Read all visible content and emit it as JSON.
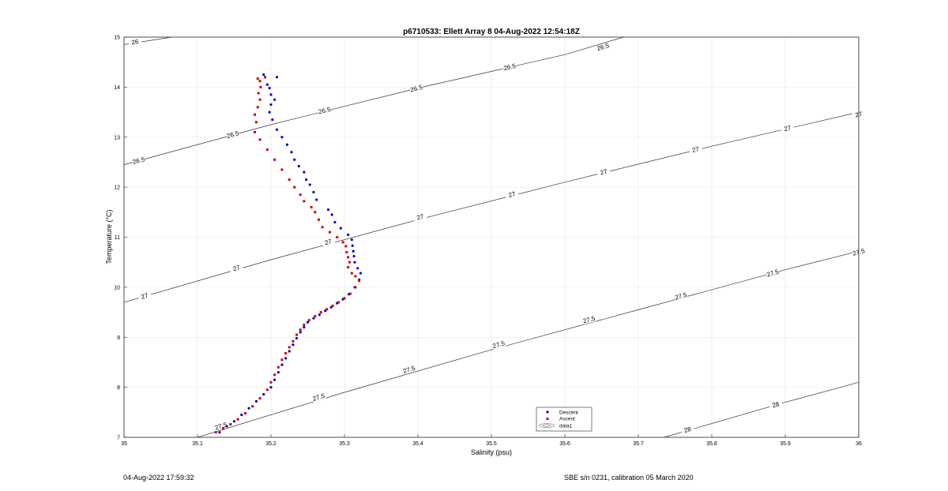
{
  "chart_data": {
    "type": "scatter",
    "title": "p6710533: Ellett Array 8 04-Aug-2022 12:54:18Z",
    "xlabel": "Salinity (psu)",
    "ylabel": "Temperature (°C)",
    "xlim": [
      35,
      36
    ],
    "ylim": [
      7,
      15
    ],
    "xticks": [
      "35",
      "35.1",
      "35.2",
      "35.3",
      "35.4",
      "35.5",
      "35.6",
      "35.7",
      "35.8",
      "35.9",
      "36"
    ],
    "yticks": [
      "7",
      "8",
      "9",
      "10",
      "11",
      "12",
      "13",
      "14",
      "15"
    ],
    "grid": true,
    "legend_position": "bottom-center",
    "legend": [
      "Descent",
      "Ascent",
      "data1"
    ],
    "series": [
      {
        "name": "Descent",
        "color": "#0000cc",
        "marker": "dot",
        "points": [
          [
            35.13,
            7.1
          ],
          [
            35.14,
            7.22
          ],
          [
            35.15,
            7.32
          ],
          [
            35.16,
            7.45
          ],
          [
            35.17,
            7.58
          ],
          [
            35.18,
            7.72
          ],
          [
            35.19,
            7.86
          ],
          [
            35.2,
            8.0
          ],
          [
            35.205,
            8.15
          ],
          [
            35.21,
            8.3
          ],
          [
            35.215,
            8.45
          ],
          [
            35.22,
            8.58
          ],
          [
            35.225,
            8.72
          ],
          [
            35.23,
            8.85
          ],
          [
            35.235,
            8.98
          ],
          [
            35.24,
            9.1
          ],
          [
            35.245,
            9.2
          ],
          [
            35.25,
            9.3
          ],
          [
            35.258,
            9.38
          ],
          [
            35.266,
            9.45
          ],
          [
            35.274,
            9.53
          ],
          [
            35.282,
            9.6
          ],
          [
            35.29,
            9.68
          ],
          [
            35.298,
            9.76
          ],
          [
            35.306,
            9.86
          ],
          [
            35.314,
            10.0
          ],
          [
            35.32,
            10.15
          ],
          [
            35.322,
            10.28
          ],
          [
            35.318,
            10.38
          ],
          [
            35.314,
            10.5
          ],
          [
            35.313,
            10.62
          ],
          [
            35.312,
            10.72
          ],
          [
            35.311,
            10.83
          ],
          [
            35.31,
            10.95
          ],
          [
            35.305,
            11.05
          ],
          [
            35.295,
            11.18
          ],
          [
            35.287,
            11.3
          ],
          [
            35.283,
            11.45
          ],
          [
            35.278,
            11.55
          ],
          [
            35.262,
            11.75
          ],
          [
            35.258,
            11.9
          ],
          [
            35.253,
            12.05
          ],
          [
            35.248,
            12.15
          ],
          [
            35.245,
            12.3
          ],
          [
            35.238,
            12.42
          ],
          [
            35.232,
            12.55
          ],
          [
            35.228,
            12.7
          ],
          [
            35.222,
            12.85
          ],
          [
            35.215,
            13.0
          ],
          [
            35.208,
            13.15
          ],
          [
            35.202,
            13.35
          ],
          [
            35.198,
            13.5
          ],
          [
            35.2,
            13.65
          ],
          [
            35.205,
            13.75
          ],
          [
            35.2,
            13.85
          ],
          [
            35.198,
            13.98
          ],
          [
            35.195,
            14.05
          ],
          [
            35.192,
            14.2
          ],
          [
            35.19,
            14.25
          ],
          [
            35.208,
            14.2
          ]
        ]
      },
      {
        "name": "Ascent",
        "color": "#cc0000",
        "marker": "square",
        "points": [
          [
            35.125,
            7.1
          ],
          [
            35.135,
            7.18
          ],
          [
            35.145,
            7.26
          ],
          [
            35.155,
            7.36
          ],
          [
            35.165,
            7.48
          ],
          [
            35.175,
            7.62
          ],
          [
            35.185,
            7.78
          ],
          [
            35.195,
            7.95
          ],
          [
            35.2,
            8.1
          ],
          [
            35.205,
            8.25
          ],
          [
            35.21,
            8.4
          ],
          [
            35.215,
            8.55
          ],
          [
            35.22,
            8.68
          ],
          [
            35.225,
            8.8
          ],
          [
            35.23,
            8.92
          ],
          [
            35.235,
            9.05
          ],
          [
            35.24,
            9.15
          ],
          [
            35.245,
            9.25
          ],
          [
            35.252,
            9.34
          ],
          [
            35.26,
            9.42
          ],
          [
            35.268,
            9.5
          ],
          [
            35.276,
            9.56
          ],
          [
            35.284,
            9.63
          ],
          [
            35.292,
            9.7
          ],
          [
            35.3,
            9.78
          ],
          [
            35.308,
            9.87
          ],
          [
            35.315,
            10.0
          ],
          [
            35.32,
            10.13
          ],
          [
            35.315,
            10.22
          ],
          [
            35.31,
            10.28
          ],
          [
            35.305,
            10.4
          ],
          [
            35.307,
            10.5
          ],
          [
            35.305,
            10.6
          ],
          [
            35.303,
            10.7
          ],
          [
            35.302,
            10.82
          ],
          [
            35.298,
            10.9
          ],
          [
            35.29,
            11.0
          ],
          [
            35.28,
            11.1
          ],
          [
            35.27,
            11.2
          ],
          [
            35.265,
            11.35
          ],
          [
            35.26,
            11.5
          ],
          [
            35.255,
            11.6
          ],
          [
            35.245,
            11.72
          ],
          [
            35.24,
            11.85
          ],
          [
            35.232,
            12.0
          ],
          [
            35.225,
            12.15
          ],
          [
            35.215,
            12.35
          ],
          [
            35.205,
            12.55
          ],
          [
            35.195,
            12.75
          ],
          [
            35.185,
            12.95
          ],
          [
            35.178,
            13.1
          ],
          [
            35.18,
            13.3
          ],
          [
            35.178,
            13.45
          ],
          [
            35.182,
            13.6
          ],
          [
            35.185,
            13.75
          ],
          [
            35.183,
            13.88
          ],
          [
            35.186,
            14.0
          ],
          [
            35.185,
            14.12
          ],
          [
            35.182,
            14.17
          ],
          [
            35.192,
            14.2
          ]
        ]
      }
    ],
    "contours": [
      {
        "label": "26",
        "points": [
          [
            35.0,
            14.85
          ],
          [
            35.065,
            15.0
          ]
        ],
        "labels_at": [
          [
            35.015,
            14.9
          ]
        ]
      },
      {
        "label": "26.5",
        "points": [
          [
            35.0,
            12.45
          ],
          [
            35.2,
            13.25
          ],
          [
            35.4,
            13.98
          ],
          [
            35.6,
            14.65
          ],
          [
            35.68,
            15.0
          ]
        ],
        "labels_at": [
          [
            35.02,
            12.53
          ],
          [
            35.148,
            13.05
          ],
          [
            35.273,
            13.53
          ],
          [
            35.398,
            13.97
          ],
          [
            35.525,
            14.4
          ],
          [
            35.652,
            14.8
          ]
        ]
      },
      {
        "label": "27",
        "points": [
          [
            35.0,
            9.7
          ],
          [
            35.2,
            10.55
          ],
          [
            35.4,
            11.35
          ],
          [
            35.6,
            12.1
          ],
          [
            35.8,
            12.82
          ],
          [
            36.0,
            13.5
          ]
        ],
        "labels_at": [
          [
            35.028,
            9.82
          ],
          [
            35.153,
            10.38
          ],
          [
            35.278,
            10.9
          ],
          [
            35.403,
            11.4
          ],
          [
            35.528,
            11.85
          ],
          [
            35.653,
            12.3
          ],
          [
            35.778,
            12.75
          ],
          [
            35.903,
            13.17
          ],
          [
            36.0,
            13.45
          ]
        ]
      },
      {
        "label": "27.5",
        "points": [
          [
            35.1,
            7.0
          ],
          [
            35.3,
            7.9
          ],
          [
            35.5,
            8.75
          ],
          [
            35.7,
            9.55
          ],
          [
            35.9,
            10.35
          ],
          [
            36.0,
            10.72
          ]
        ],
        "labels_at": [
          [
            35.132,
            7.22
          ],
          [
            35.265,
            7.8
          ],
          [
            35.388,
            8.35
          ],
          [
            35.51,
            8.85
          ],
          [
            35.633,
            9.35
          ],
          [
            35.758,
            9.82
          ],
          [
            35.883,
            10.28
          ],
          [
            36.0,
            10.7
          ]
        ]
      },
      {
        "label": "28",
        "points": [
          [
            35.735,
            7.0
          ],
          [
            35.9,
            7.7
          ],
          [
            36.0,
            8.1
          ]
        ],
        "labels_at": [
          [
            35.767,
            7.15
          ],
          [
            35.887,
            7.65
          ]
        ]
      }
    ]
  },
  "footer": {
    "left": "04-Aug-2022 17:59:32",
    "right": "SBE s/n 0231, calibration 05 March 2020"
  }
}
